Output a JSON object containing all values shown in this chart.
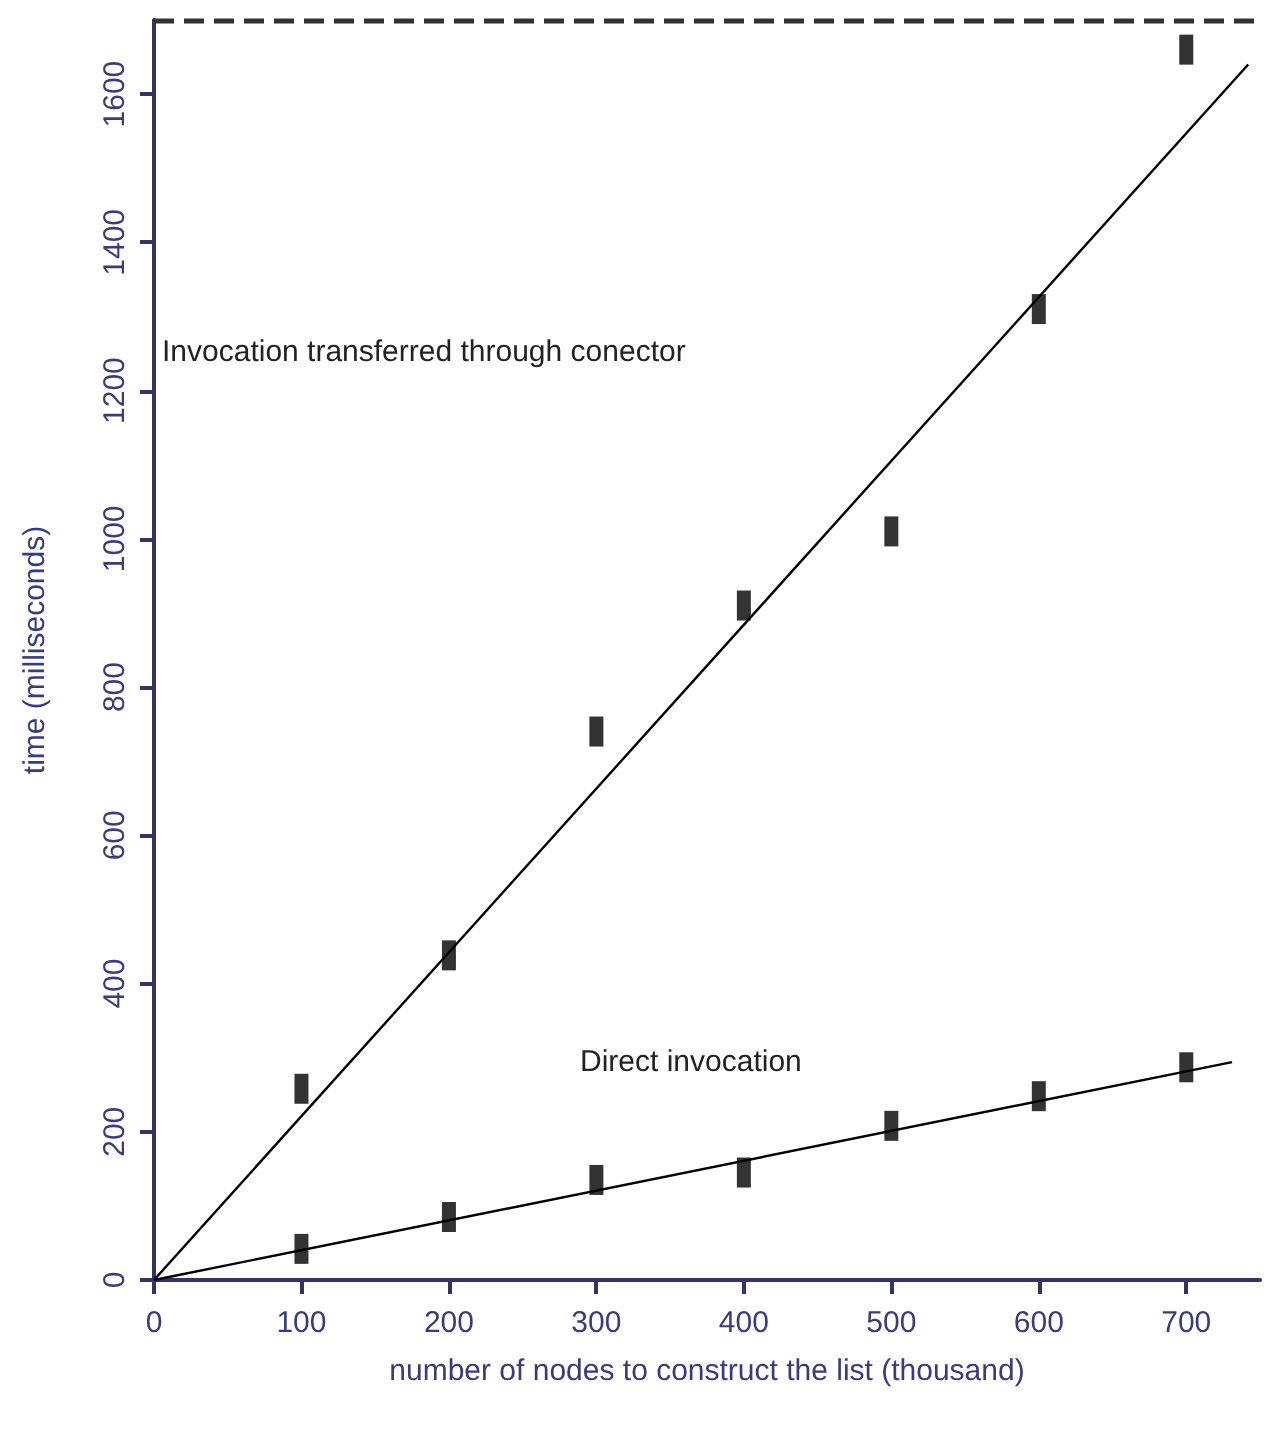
{
  "chart_data": {
    "type": "scatter",
    "xlabel": "number of nodes to construct the list (thousand)",
    "ylabel": "time (milliseconds)",
    "xlim": [
      0,
      750
    ],
    "xticks": [
      0,
      100,
      200,
      300,
      400,
      500,
      600,
      700
    ],
    "ylim": [
      0,
      1700
    ],
    "yticks": [
      0,
      200,
      400,
      600,
      800,
      1000,
      1200,
      1400,
      1600
    ],
    "grid": false,
    "marker": "square",
    "series": [
      {
        "color": "#000000",
        "x": [
          100,
          200,
          300,
          400,
          500,
          600,
          700
        ],
        "values": [
          258,
          438,
          740,
          910,
          1010,
          1310,
          1660
        ]
      },
      {
        "color": "#000000",
        "x": [
          100,
          200,
          300,
          400,
          500,
          600,
          700
        ],
        "values": [
          42,
          85,
          135,
          145,
          208,
          248,
          287
        ]
      },
      {
        "type": "line",
        "color": "#000000",
        "marker": "none",
        "line_style": "solid",
        "x": [
          0,
          742
        ],
        "values": [
          0,
          1640
        ]
      },
      {
        "type": "line",
        "color": "#000000",
        "marker": "none",
        "line_style": "solid",
        "x": [
          0,
          731
        ],
        "values": [
          0,
          294
        ]
      }
    ],
    "ref_lines": [
      {
        "axis": "y",
        "value": 1700,
        "label": null,
        "line_style": "dashed",
        "color": "#333333"
      }
    ],
    "annotations": [
      "Invocation transferred through conector",
      "Direct invocation"
    ]
  }
}
